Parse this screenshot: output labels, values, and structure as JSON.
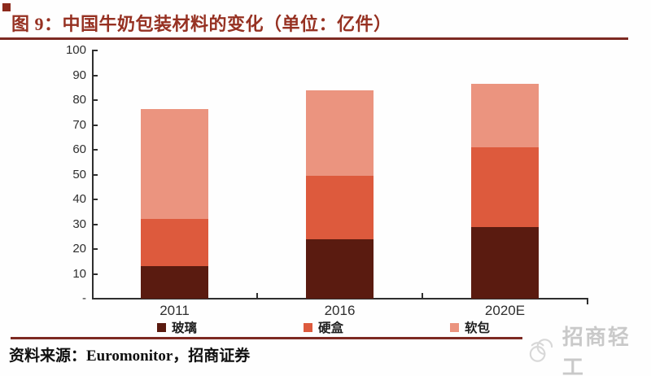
{
  "chart_data": {
    "type": "bar",
    "stacked": true,
    "title": "图 9：中国牛奶包装材料的变化（单位：亿件）",
    "categories": [
      "2011",
      "2016",
      "2020E"
    ],
    "series": [
      {
        "name": "玻璃",
        "color": "#5a1b10",
        "values": [
          13,
          24,
          29
        ]
      },
      {
        "name": "硬盒",
        "color": "#dd5a3d",
        "values": [
          19,
          25.5,
          32
        ]
      },
      {
        "name": "软包",
        "color": "#eb947f",
        "values": [
          44.5,
          34.5,
          25.5
        ]
      }
    ],
    "stacked_totals": [
      76.5,
      84,
      86.5
    ],
    "ylim": [
      0,
      100
    ],
    "ytick_step": 10,
    "ytick_labels": [
      "-",
      "10",
      "20",
      "30",
      "40",
      "50",
      "60",
      "70",
      "80",
      "90",
      "100"
    ],
    "legend_position": "bottom",
    "grid": false
  },
  "footer": {
    "source": "资料来源：Euromonitor，招商证券",
    "watermark": "招商轻工"
  }
}
